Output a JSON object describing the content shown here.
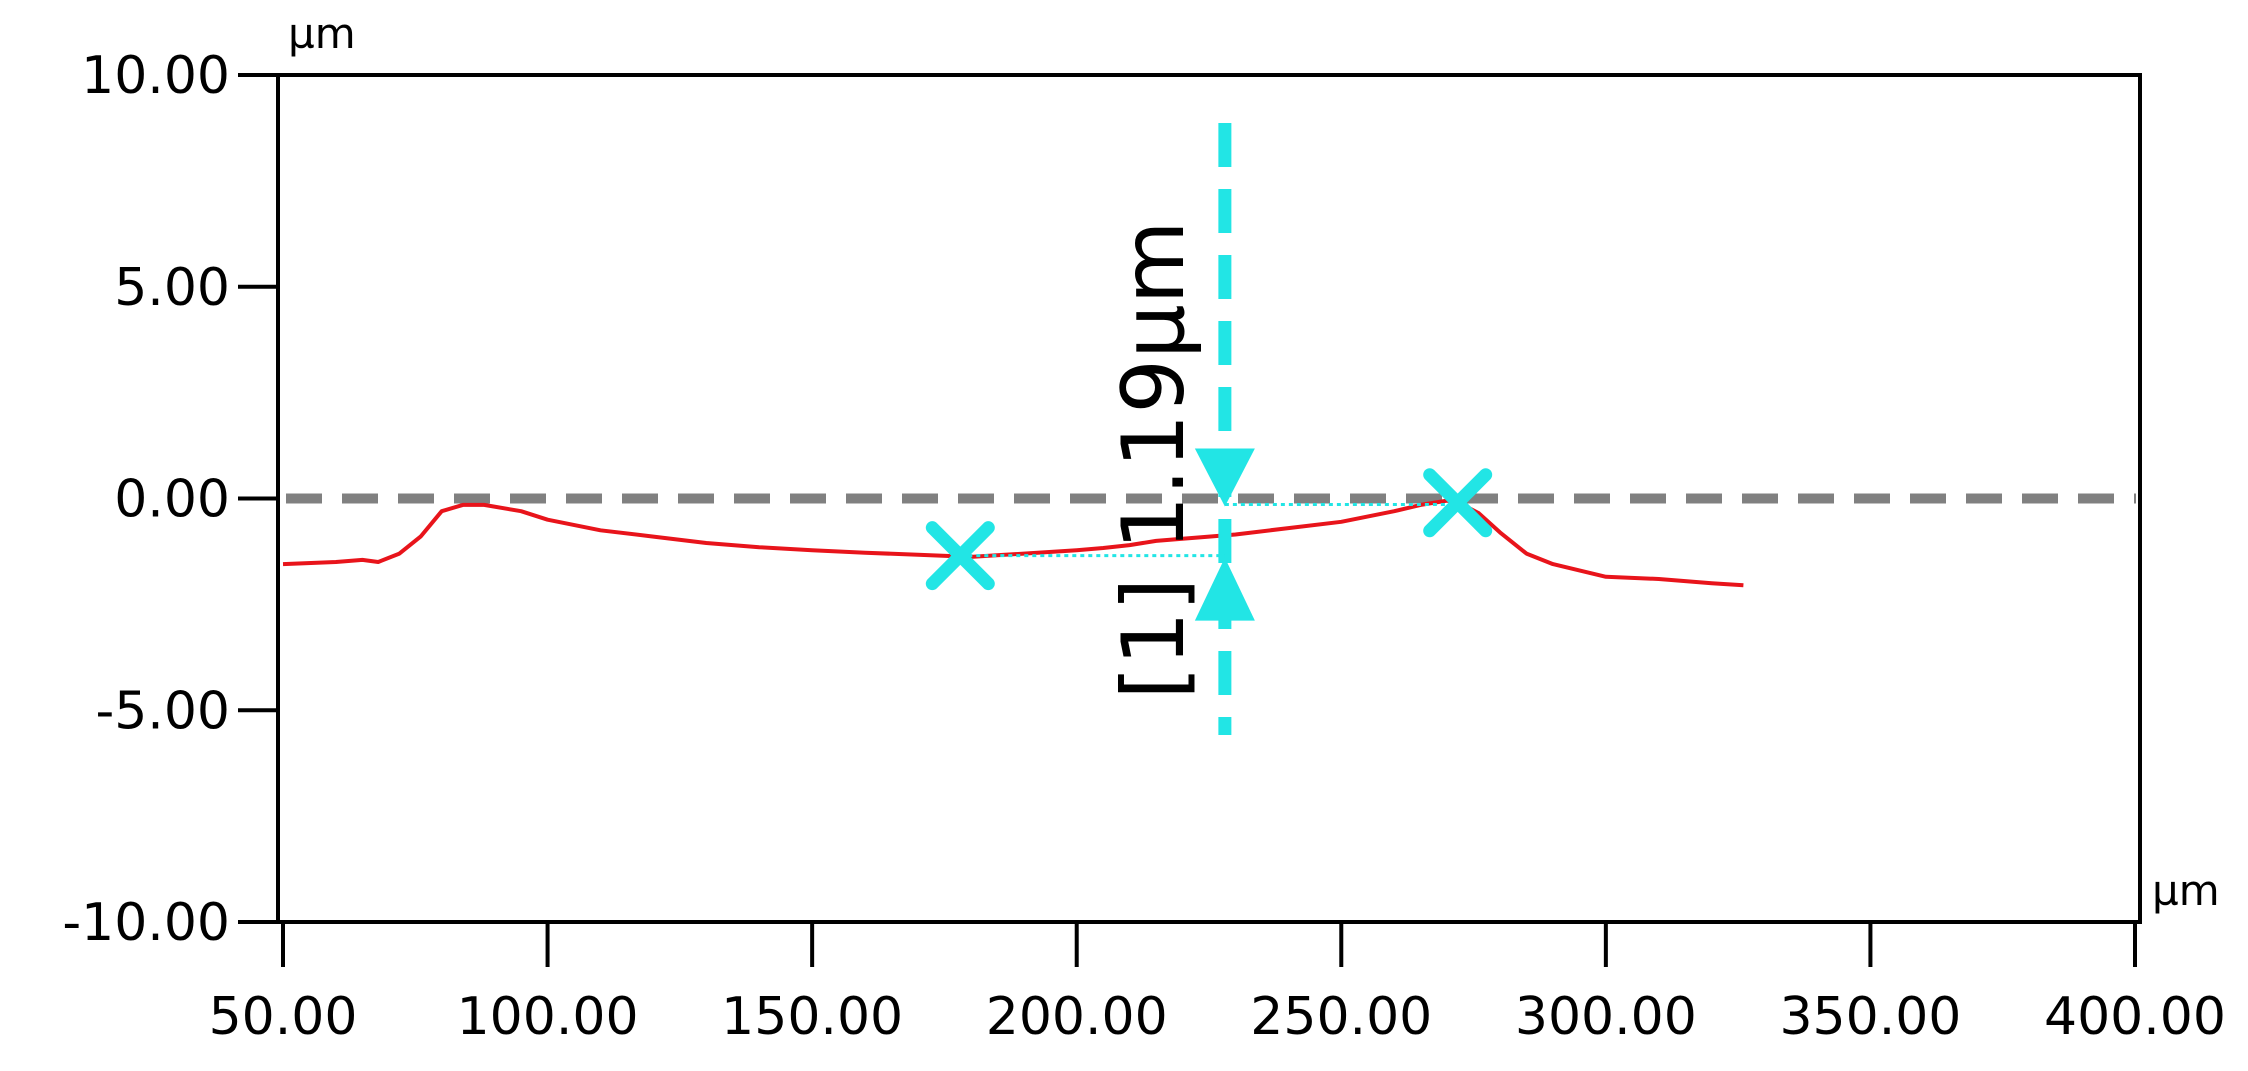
{
  "chart_data": {
    "type": "line",
    "title": "",
    "xlabel": "",
    "ylabel": "",
    "x_unit": "µm",
    "y_unit": "µm",
    "xlim": [
      50,
      400
    ],
    "ylim": [
      -10,
      10
    ],
    "x_ticks": [
      "50.00",
      "100.00",
      "150.00",
      "200.00",
      "250.00",
      "300.00",
      "350.00",
      "400.00"
    ],
    "y_ticks": [
      "10.00",
      "5.00",
      "0.00",
      "-5.00",
      "-10.00"
    ],
    "x_tick_values": [
      50,
      100,
      150,
      200,
      250,
      300,
      350,
      400
    ],
    "y_tick_values": [
      10,
      5,
      0,
      -5,
      -10
    ],
    "grid": false,
    "series": [
      {
        "color": "#e8141b",
        "x": [
          50,
          60,
          65,
          68,
          72,
          76,
          80,
          84,
          88,
          95,
          100,
          110,
          120,
          130,
          140,
          150,
          160,
          170,
          180,
          190,
          200,
          205,
          210,
          215,
          220,
          225,
          230,
          240,
          250,
          260,
          265,
          270,
          273,
          276,
          280,
          285,
          290,
          300,
          310,
          320,
          326
        ],
        "y": [
          -1.55,
          -1.5,
          -1.45,
          -1.5,
          -1.3,
          -0.9,
          -0.3,
          -0.15,
          -0.15,
          -0.3,
          -0.5,
          -0.75,
          -0.9,
          -1.05,
          -1.15,
          -1.22,
          -1.28,
          -1.33,
          -1.38,
          -1.3,
          -1.22,
          -1.17,
          -1.1,
          -1.0,
          -0.95,
          -0.9,
          -0.85,
          -0.7,
          -0.55,
          -0.3,
          -0.15,
          -0.05,
          -0.15,
          -0.35,
          -0.8,
          -1.3,
          -1.55,
          -1.85,
          -1.9,
          -2.0,
          -2.05
        ]
      }
    ],
    "reference_line": {
      "y": 0,
      "color": "#808080",
      "style": "dashed"
    },
    "markers": [
      {
        "x": 178,
        "y": -1.35,
        "shape": "x",
        "color": "#22e5e5"
      },
      {
        "x": 272,
        "y": -0.1,
        "shape": "x",
        "color": "#22e5e5"
      }
    ],
    "measurement": {
      "label": "[1] 1.19µm",
      "value": 1.19,
      "unit": "µm",
      "x": 228,
      "y_top": 0,
      "y_bottom": -1.35,
      "color": "#22e5e5"
    }
  }
}
